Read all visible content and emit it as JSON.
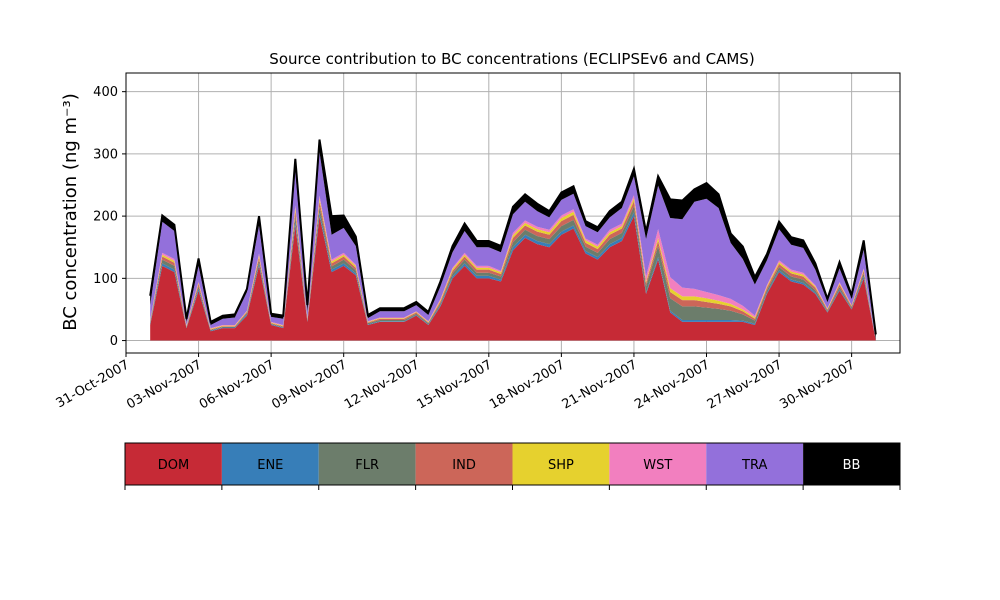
{
  "chart_data": {
    "type": "area",
    "title": "Source contribution to BC concentrations (ECLIPSEv6 and CAMS)",
    "ylabel": "BC concentration (ng m⁻³)",
    "xlabel": "",
    "ylim": [
      -20,
      430
    ],
    "xlim": [
      "2007-10-31",
      "2007-12-02"
    ],
    "grid": true,
    "legend_position": "bottom",
    "x_ticks": [
      "31-Oct-2007",
      "03-Nov-2007",
      "06-Nov-2007",
      "09-Nov-2007",
      "12-Nov-2007",
      "15-Nov-2007",
      "18-Nov-2007",
      "21-Nov-2007",
      "24-Nov-2007",
      "27-Nov-2007",
      "30-Nov-2007"
    ],
    "y_ticks": [
      0,
      100,
      200,
      300,
      400
    ],
    "x": [
      "2007-11-01",
      "2007-11-01 12:00",
      "2007-11-02",
      "2007-11-02 12:00",
      "2007-11-03",
      "2007-11-03 12:00",
      "2007-11-04",
      "2007-11-04 12:00",
      "2007-11-05",
      "2007-11-05 12:00",
      "2007-11-06",
      "2007-11-06 12:00",
      "2007-11-07",
      "2007-11-07 12:00",
      "2007-11-08",
      "2007-11-08 12:00",
      "2007-11-09",
      "2007-11-09 12:00",
      "2007-11-10",
      "2007-11-10 12:00",
      "2007-11-11",
      "2007-11-11 12:00",
      "2007-11-12",
      "2007-11-12 12:00",
      "2007-11-13",
      "2007-11-13 12:00",
      "2007-11-14",
      "2007-11-14 12:00",
      "2007-11-15",
      "2007-11-15 12:00",
      "2007-11-16",
      "2007-11-16 12:00",
      "2007-11-17",
      "2007-11-17 12:00",
      "2007-11-18",
      "2007-11-18 12:00",
      "2007-11-19",
      "2007-11-19 12:00",
      "2007-11-20",
      "2007-11-20 12:00",
      "2007-11-21",
      "2007-11-21 12:00",
      "2007-11-22",
      "2007-11-22 12:00",
      "2007-11-23",
      "2007-11-23 12:00",
      "2007-11-24",
      "2007-11-24 12:00",
      "2007-11-25",
      "2007-11-25 12:00",
      "2007-11-26",
      "2007-11-26 12:00",
      "2007-11-27",
      "2007-11-27 12:00",
      "2007-11-28",
      "2007-11-28 12:00",
      "2007-11-29",
      "2007-11-29 12:00",
      "2007-11-30",
      "2007-11-30 12:00",
      "2007-12-01"
    ],
    "series": [
      {
        "name": "DOM",
        "color": "#c62a36",
        "values": [
          25,
          120,
          110,
          20,
          80,
          15,
          20,
          20,
          40,
          120,
          25,
          20,
          185,
          30,
          200,
          110,
          120,
          105,
          25,
          30,
          30,
          30,
          40,
          25,
          55,
          100,
          120,
          100,
          100,
          95,
          145,
          165,
          155,
          150,
          170,
          180,
          140,
          130,
          150,
          160,
          200,
          75,
          130,
          45,
          30,
          30,
          30,
          30,
          30,
          30,
          25,
          75,
          110,
          95,
          90,
          75,
          45,
          80,
          50,
          100,
          0
        ]
      },
      {
        "name": "ENE",
        "color": "#377eb8",
        "values": [
          2,
          4,
          4,
          1,
          3,
          1,
          1,
          1,
          2,
          3,
          1,
          1,
          5,
          1,
          5,
          4,
          4,
          3,
          1,
          1,
          1,
          1,
          1,
          1,
          2,
          3,
          4,
          4,
          4,
          3,
          5,
          5,
          5,
          5,
          5,
          5,
          4,
          4,
          5,
          5,
          6,
          2,
          4,
          3,
          3,
          3,
          3,
          3,
          3,
          2,
          2,
          2,
          3,
          3,
          3,
          2,
          1,
          2,
          1,
          3,
          0
        ]
      },
      {
        "name": "FLR",
        "color": "#6c7d6b",
        "values": [
          2,
          6,
          6,
          1,
          4,
          1,
          1,
          1,
          2,
          6,
          1,
          1,
          10,
          2,
          10,
          5,
          6,
          5,
          2,
          2,
          2,
          2,
          2,
          2,
          3,
          5,
          6,
          5,
          5,
          5,
          8,
          8,
          8,
          8,
          9,
          9,
          7,
          7,
          8,
          8,
          10,
          10,
          18,
          20,
          22,
          22,
          20,
          18,
          15,
          10,
          5,
          4,
          5,
          5,
          5,
          4,
          2,
          4,
          2,
          5,
          0
        ]
      },
      {
        "name": "IND",
        "color": "#cc6659",
        "values": [
          2,
          5,
          5,
          1,
          4,
          1,
          1,
          1,
          2,
          5,
          1,
          1,
          8,
          2,
          9,
          5,
          5,
          4,
          1,
          2,
          2,
          2,
          2,
          1,
          3,
          4,
          5,
          5,
          5,
          4,
          7,
          7,
          7,
          7,
          8,
          8,
          6,
          6,
          7,
          7,
          8,
          5,
          8,
          10,
          10,
          10,
          9,
          8,
          7,
          5,
          3,
          4,
          5,
          5,
          5,
          4,
          2,
          4,
          2,
          4,
          0
        ]
      },
      {
        "name": "SHP",
        "color": "#e6d12e",
        "values": [
          1,
          3,
          3,
          1,
          2,
          1,
          1,
          1,
          1,
          3,
          1,
          1,
          5,
          1,
          5,
          3,
          3,
          3,
          1,
          1,
          1,
          1,
          1,
          1,
          2,
          3,
          3,
          3,
          3,
          3,
          4,
          4,
          4,
          4,
          5,
          5,
          4,
          4,
          4,
          4,
          5,
          3,
          5,
          6,
          6,
          6,
          6,
          5,
          4,
          3,
          2,
          2,
          3,
          3,
          3,
          2,
          1,
          2,
          1,
          2,
          0
        ]
      },
      {
        "name": "WST",
        "color": "#f27fbf",
        "values": [
          1,
          3,
          3,
          1,
          2,
          1,
          1,
          1,
          1,
          3,
          1,
          1,
          4,
          1,
          4,
          3,
          3,
          2,
          1,
          1,
          1,
          1,
          1,
          1,
          2,
          2,
          3,
          3,
          3,
          2,
          4,
          4,
          4,
          4,
          4,
          4,
          3,
          3,
          4,
          4,
          5,
          8,
          14,
          18,
          14,
          12,
          10,
          9,
          8,
          6,
          3,
          2,
          3,
          3,
          3,
          2,
          1,
          2,
          1,
          2,
          0
        ]
      },
      {
        "name": "TRA",
        "color": "#9370db",
        "values": [
          24,
          50,
          45,
          5,
          25,
          5,
          10,
          12,
          30,
          45,
          8,
          10,
          55,
          10,
          70,
          40,
          40,
          30,
          5,
          10,
          10,
          10,
          10,
          10,
          20,
          25,
          35,
          30,
          30,
          30,
          30,
          30,
          25,
          20,
          25,
          25,
          20,
          20,
          20,
          25,
          30,
          60,
          70,
          95,
          110,
          140,
          150,
          140,
          90,
          75,
          50,
          40,
          50,
          40,
          40,
          25,
          10,
          22,
          10,
          30,
          0
        ]
      },
      {
        "name": "BB",
        "color": "#000000",
        "values": [
          15,
          10,
          10,
          5,
          12,
          5,
          5,
          5,
          5,
          15,
          5,
          5,
          20,
          10,
          20,
          30,
          20,
          15,
          5,
          5,
          5,
          5,
          5,
          5,
          8,
          10,
          12,
          10,
          10,
          10,
          12,
          12,
          12,
          10,
          12,
          12,
          8,
          8,
          10,
          10,
          12,
          12,
          15,
          30,
          30,
          20,
          25,
          22,
          15,
          20,
          12,
          10,
          12,
          12,
          12,
          10,
          5,
          10,
          6,
          15,
          10
        ]
      }
    ]
  },
  "legend": {
    "items": [
      {
        "label": "DOM",
        "color": "#c62a36",
        "text_color": "#000000"
      },
      {
        "label": "ENE",
        "color": "#377eb8",
        "text_color": "#000000"
      },
      {
        "label": "FLR",
        "color": "#6c7d6b",
        "text_color": "#000000"
      },
      {
        "label": "IND",
        "color": "#cc6659",
        "text_color": "#000000"
      },
      {
        "label": "SHP",
        "color": "#e6d12e",
        "text_color": "#000000"
      },
      {
        "label": "WST",
        "color": "#f27fbf",
        "text_color": "#000000"
      },
      {
        "label": "TRA",
        "color": "#9370db",
        "text_color": "#000000"
      },
      {
        "label": "BB",
        "color": "#000000",
        "text_color": "#ffffff"
      }
    ]
  }
}
